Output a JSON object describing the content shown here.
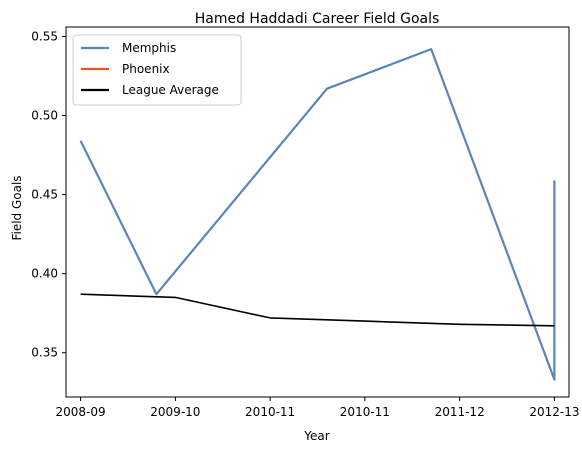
{
  "chart_data": {
    "type": "line",
    "title": "Hamed Haddadi Career Field Goals",
    "xlabel": "Year",
    "ylabel": "Field Goals",
    "x_tick_labels": [
      "2008-09",
      "2009-10",
      "2010-11",
      "2010-11",
      "2011-12",
      "2012-13"
    ],
    "y_ticks": [
      0.35,
      0.4,
      0.45,
      0.5,
      0.55
    ],
    "y_tick_labels": [
      "0.35",
      "0.40",
      "0.45",
      "0.50",
      "0.55"
    ],
    "ylim": [
      0.322,
      0.556
    ],
    "xlim": [
      -0.154,
      5.154
    ],
    "grid": false,
    "legend_position": "upper-left",
    "series": [
      {
        "name": "Memphis",
        "color": "#5b84b8",
        "points": [
          [
            0,
            0.484
          ],
          [
            0.8,
            0.387
          ],
          [
            2.6,
            0.517
          ],
          [
            3.7,
            0.542
          ],
          [
            5,
            0.333
          ],
          [
            5,
            0.459
          ]
        ]
      },
      {
        "name": "Phoenix",
        "color": "#e05a24",
        "points": []
      },
      {
        "name": "League Average",
        "color": "#000000",
        "points": [
          [
            0,
            0.387
          ],
          [
            1,
            0.385
          ],
          [
            2,
            0.372
          ],
          [
            3,
            0.37
          ],
          [
            4,
            0.368
          ],
          [
            5,
            0.367
          ]
        ]
      }
    ]
  }
}
